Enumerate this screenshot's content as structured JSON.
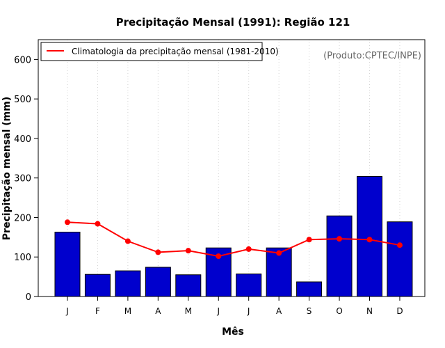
{
  "chart_data": {
    "type": "bar",
    "title": "Precipitação Mensal (1991): Região 121",
    "xlabel": "Mês",
    "ylabel": "Precipitação mensal (mm)",
    "categories": [
      "J",
      "F",
      "M",
      "A",
      "M",
      "J",
      "J",
      "A",
      "S",
      "O",
      "N",
      "D"
    ],
    "series": [
      {
        "name": "Precipitação mensal (1991)",
        "type": "bar",
        "color": "#0000CD",
        "values": [
          163,
          56,
          65,
          74,
          55,
          123,
          57,
          123,
          37,
          204,
          304,
          189
        ]
      },
      {
        "name": "Climatologia da precipitação mensal (1981-2010)",
        "type": "line",
        "color": "#FF0000",
        "values": [
          188,
          184,
          140,
          112,
          116,
          102,
          120,
          110,
          144,
          146,
          144,
          130
        ]
      }
    ],
    "yticks": [
      0,
      100,
      200,
      300,
      400,
      500,
      600
    ],
    "ylim": [
      0,
      650
    ],
    "grid": "vertical-dotted",
    "legend": {
      "position": "top-left",
      "label": "Climatologia da precipitação mensal (1981-2010)"
    },
    "credit": "(Produto:CPTEC/INPE)"
  }
}
